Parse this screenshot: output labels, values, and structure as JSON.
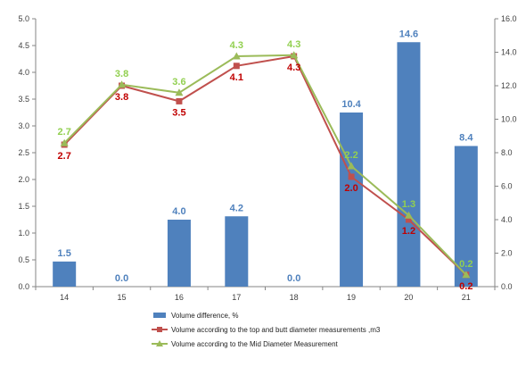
{
  "chart_data": {
    "type": "bar",
    "categories": [
      "14",
      "15",
      "16",
      "17",
      "18",
      "19",
      "20",
      "21"
    ],
    "y_left": {
      "ylim": [
        0,
        5.0
      ],
      "ticks": [
        "0.0",
        "0.5",
        "1.0",
        "1.5",
        "2.0",
        "2.5",
        "3.0",
        "3.5",
        "4.0",
        "4.5",
        "5.0"
      ]
    },
    "y_right": {
      "ylim": [
        0,
        16.0
      ],
      "ticks": [
        "0.0",
        "2.0",
        "4.0",
        "6.0",
        "8.0",
        "10.0",
        "12.0",
        "14.0",
        "16.0"
      ]
    },
    "grid": false,
    "legend_position": "bottom",
    "series": [
      {
        "name": "Volume difference, %",
        "type": "bar",
        "axis": "right",
        "color": "#4F81BD",
        "label_color": "#4F81BD",
        "values": [
          1.5,
          0.0,
          4.0,
          4.2,
          0.0,
          10.4,
          14.6,
          8.4
        ],
        "labels": [
          "1.5",
          "0.0",
          "4.0",
          "4.2",
          "0.0",
          "10.4",
          "14.6",
          "8.4"
        ]
      },
      {
        "name": "Volume according to the top and butt diameter measurements ,m3",
        "type": "line",
        "axis": "left",
        "marker": "square",
        "color": "#C0504D",
        "label_color": "#C00000",
        "values": [
          2.65,
          3.75,
          3.46,
          4.12,
          4.3,
          2.05,
          1.25,
          0.22
        ],
        "labels": [
          "2.7",
          "3.8",
          "3.5",
          "4.1",
          "4.3",
          "2.0",
          "1.2",
          "0.2"
        ]
      },
      {
        "name": "Volume according to the Mid Diameter Measurement",
        "type": "line",
        "axis": "left",
        "marker": "triangle",
        "color": "#9BBB59",
        "label_color": "#92D050",
        "values": [
          2.68,
          3.77,
          3.62,
          4.3,
          4.32,
          2.25,
          1.33,
          0.22
        ],
        "labels": [
          "2.7",
          "3.8",
          "3.6",
          "4.3",
          "4.3",
          "2.2",
          "1.3",
          "0.2"
        ]
      }
    ]
  }
}
